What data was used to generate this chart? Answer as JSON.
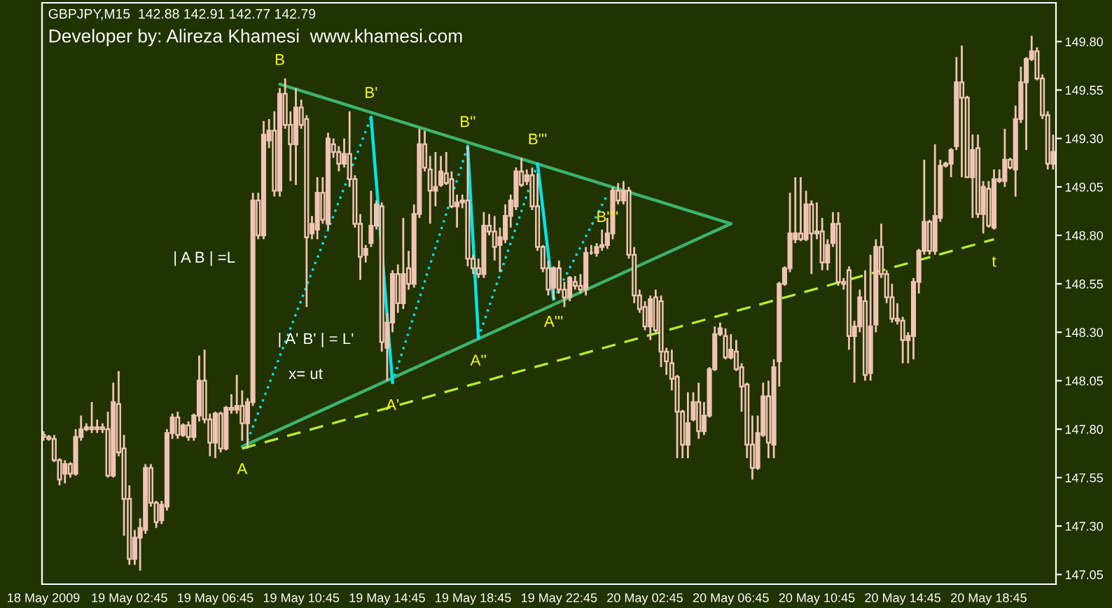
{
  "chart_data": {
    "type": "candlestick",
    "title": "GBPJPY,M15  142.88 142.91 142.77 142.79",
    "subtitle": "Developer by: Alireza Khamesi  www.khamesi.com",
    "color": "#f0c4b4",
    "x": [
      "2009-05-18T22:45",
      "2009-05-18T23:00",
      "2009-05-18T23:15",
      "2009-05-18T23:30",
      "2009-05-18T23:45",
      "2009-05-19T00:00",
      "2009-05-19T00:15",
      "2009-05-19T00:30",
      "2009-05-19T00:45",
      "2009-05-19T01:00",
      "2009-05-19T01:15",
      "2009-05-19T01:30",
      "2009-05-19T01:45",
      "2009-05-19T02:00",
      "2009-05-19T02:15",
      "2009-05-19T02:30",
      "2009-05-19T02:45",
      "2009-05-19T03:00",
      "2009-05-19T03:15",
      "2009-05-19T03:30",
      "2009-05-19T03:45",
      "2009-05-19T04:00",
      "2009-05-19T04:15",
      "2009-05-19T04:30",
      "2009-05-19T04:45",
      "2009-05-19T05:00",
      "2009-05-19T05:15",
      "2009-05-19T05:30",
      "2009-05-19T05:45",
      "2009-05-19T06:00",
      "2009-05-19T06:15",
      "2009-05-19T06:30",
      "2009-05-19T06:45",
      "2009-05-19T07:00",
      "2009-05-19T07:15",
      "2009-05-19T07:30",
      "2009-05-19T07:45",
      "2009-05-19T08:00",
      "2009-05-19T08:15",
      "2009-05-19T08:30",
      "2009-05-19T08:45",
      "2009-05-19T09:00",
      "2009-05-19T09:15",
      "2009-05-19T09:30",
      "2009-05-19T09:45",
      "2009-05-19T10:00",
      "2009-05-19T10:15",
      "2009-05-19T10:30",
      "2009-05-19T10:45",
      "2009-05-19T11:00",
      "2009-05-19T11:15",
      "2009-05-19T11:30",
      "2009-05-19T11:45",
      "2009-05-19T12:00",
      "2009-05-19T12:15",
      "2009-05-19T12:30",
      "2009-05-19T12:45",
      "2009-05-19T13:00",
      "2009-05-19T13:15",
      "2009-05-19T13:30",
      "2009-05-19T13:45",
      "2009-05-19T14:00",
      "2009-05-19T14:15",
      "2009-05-19T14:30",
      "2009-05-19T14:45",
      "2009-05-19T15:00",
      "2009-05-19T15:15",
      "2009-05-19T15:30",
      "2009-05-19T15:45",
      "2009-05-19T16:00",
      "2009-05-19T16:15",
      "2009-05-19T16:30",
      "2009-05-19T16:45",
      "2009-05-19T17:00",
      "2009-05-19T17:15",
      "2009-05-19T17:30",
      "2009-05-19T17:45",
      "2009-05-19T18:00",
      "2009-05-19T18:15",
      "2009-05-19T18:30",
      "2009-05-19T18:45",
      "2009-05-19T19:00",
      "2009-05-19T19:15",
      "2009-05-19T19:30",
      "2009-05-19T19:45",
      "2009-05-19T20:00",
      "2009-05-19T20:15",
      "2009-05-19T20:30",
      "2009-05-19T20:45",
      "2009-05-19T21:00",
      "2009-05-19T21:15",
      "2009-05-19T21:30",
      "2009-05-19T21:45",
      "2009-05-19T22:00",
      "2009-05-19T22:15",
      "2009-05-19T22:30",
      "2009-05-19T22:45",
      "2009-05-19T23:00",
      "2009-05-19T23:15",
      "2009-05-19T23:30",
      "2009-05-19T23:45",
      "2009-05-20T00:00",
      "2009-05-20T00:15",
      "2009-05-20T00:30",
      "2009-05-20T00:45",
      "2009-05-20T01:00",
      "2009-05-20T01:15",
      "2009-05-20T01:30",
      "2009-05-20T01:45",
      "2009-05-20T02:00",
      "2009-05-20T02:15",
      "2009-05-20T02:30",
      "2009-05-20T02:45",
      "2009-05-20T03:00",
      "2009-05-20T03:15",
      "2009-05-20T03:30",
      "2009-05-20T03:45",
      "2009-05-20T04:00",
      "2009-05-20T04:15",
      "2009-05-20T04:30",
      "2009-05-20T04:45",
      "2009-05-20T05:00",
      "2009-05-20T05:15",
      "2009-05-20T05:30",
      "2009-05-20T05:45",
      "2009-05-20T06:00",
      "2009-05-20T06:15",
      "2009-05-20T06:30",
      "2009-05-20T06:45",
      "2009-05-20T07:00",
      "2009-05-20T07:15",
      "2009-05-20T07:30",
      "2009-05-20T07:45",
      "2009-05-20T08:00",
      "2009-05-20T08:15",
      "2009-05-20T08:30",
      "2009-05-20T08:45",
      "2009-05-20T09:00",
      "2009-05-20T09:15",
      "2009-05-20T09:30",
      "2009-05-20T09:45",
      "2009-05-20T10:00",
      "2009-05-20T10:15",
      "2009-05-20T10:30",
      "2009-05-20T10:45",
      "2009-05-20T11:00",
      "2009-05-20T11:15",
      "2009-05-20T11:30",
      "2009-05-20T11:45",
      "2009-05-20T12:00",
      "2009-05-20T12:15",
      "2009-05-20T12:30",
      "2009-05-20T12:45",
      "2009-05-20T13:00",
      "2009-05-20T13:15",
      "2009-05-20T13:30",
      "2009-05-20T13:45",
      "2009-05-20T14:00",
      "2009-05-20T14:15",
      "2009-05-20T14:30",
      "2009-05-20T14:45",
      "2009-05-20T15:00",
      "2009-05-20T15:15",
      "2009-05-20T15:30",
      "2009-05-20T15:45",
      "2009-05-20T16:00",
      "2009-05-20T16:15",
      "2009-05-20T16:30",
      "2009-05-20T16:45",
      "2009-05-20T17:00",
      "2009-05-20T17:15",
      "2009-05-20T17:30",
      "2009-05-20T17:45",
      "2009-05-20T18:00",
      "2009-05-20T18:15",
      "2009-05-20T18:30",
      "2009-05-20T18:45",
      "2009-05-20T19:00",
      "2009-05-20T19:15",
      "2009-05-20T19:30",
      "2009-05-20T19:45",
      "2009-05-20T20:00",
      "2009-05-20T20:15",
      "2009-05-20T20:30",
      "2009-05-20T20:45",
      "2009-05-20T21:00",
      "2009-05-20T21:15",
      "2009-05-20T21:30",
      "2009-05-20T21:45"
    ],
    "ohlc": [
      [
        147.77,
        147.79,
        147.74,
        147.76
      ],
      [
        147.76,
        147.77,
        147.74,
        147.75
      ],
      [
        147.75,
        147.77,
        147.63,
        147.64
      ],
      [
        147.64,
        147.65,
        147.51,
        147.54
      ],
      [
        147.57,
        147.64,
        147.52,
        147.62
      ],
      [
        147.62,
        147.63,
        147.55,
        147.57
      ],
      [
        147.57,
        147.8,
        147.56,
        147.76
      ],
      [
        147.76,
        147.87,
        147.74,
        147.8
      ],
      [
        147.8,
        147.83,
        147.79,
        147.81
      ],
      [
        147.81,
        147.94,
        147.78,
        147.8
      ],
      [
        147.8,
        147.85,
        147.78,
        147.81
      ],
      [
        147.81,
        147.83,
        147.78,
        147.8
      ],
      [
        147.8,
        147.89,
        147.55,
        147.56
      ],
      [
        147.56,
        148.04,
        147.55,
        147.94
      ],
      [
        147.93,
        148.1,
        147.66,
        147.68
      ],
      [
        147.7,
        147.77,
        147.25,
        147.44
      ],
      [
        147.44,
        147.51,
        147.1,
        147.13
      ],
      [
        147.13,
        147.28,
        147.1,
        147.24
      ],
      [
        147.24,
        147.34,
        147.07,
        147.29
      ],
      [
        147.28,
        147.62,
        147.26,
        147.6
      ],
      [
        147.6,
        147.62,
        147.4,
        147.42
      ],
      [
        147.42,
        147.43,
        147.29,
        147.32
      ],
      [
        147.33,
        147.43,
        147.31,
        147.41
      ],
      [
        147.4,
        147.8,
        147.38,
        147.78
      ],
      [
        147.78,
        147.88,
        147.75,
        147.86
      ],
      [
        147.86,
        147.89,
        147.75,
        147.77
      ],
      [
        147.77,
        147.83,
        147.76,
        147.82
      ],
      [
        147.82,
        147.84,
        147.74,
        147.76
      ],
      [
        147.76,
        147.88,
        147.74,
        147.87
      ],
      [
        147.87,
        148.18,
        147.84,
        148.05
      ],
      [
        148.05,
        148.21,
        147.83,
        147.85
      ],
      [
        147.85,
        147.88,
        147.66,
        147.73
      ],
      [
        147.73,
        147.89,
        147.65,
        147.88
      ],
      [
        147.88,
        147.89,
        147.68,
        147.7
      ],
      [
        147.7,
        147.92,
        147.69,
        147.91
      ],
      [
        147.91,
        147.98,
        147.88,
        147.9
      ],
      [
        147.9,
        148.08,
        147.88,
        147.92
      ],
      [
        147.92,
        148.0,
        147.74,
        147.83
      ],
      [
        147.83,
        147.96,
        147.7,
        147.94
      ],
      [
        147.94,
        149.02,
        147.92,
        148.98
      ],
      [
        148.98,
        149.02,
        148.78,
        148.8
      ],
      [
        148.8,
        149.39,
        148.78,
        149.32
      ],
      [
        149.29,
        149.4,
        149.25,
        149.34
      ],
      [
        149.34,
        149.44,
        149.0,
        149.03
      ],
      [
        149.03,
        149.56,
        149.0,
        149.53
      ],
      [
        149.53,
        149.61,
        149.35,
        149.37
      ],
      [
        149.37,
        149.44,
        149.08,
        149.27
      ],
      [
        149.27,
        149.56,
        149.06,
        149.46
      ],
      [
        149.46,
        149.5,
        149.35,
        149.37
      ],
      [
        149.4,
        149.42,
        148.43,
        148.79
      ],
      [
        148.81,
        148.9,
        148.78,
        148.86
      ],
      [
        148.83,
        149.1,
        148.78,
        149.02
      ],
      [
        149.02,
        149.1,
        148.86,
        148.88
      ],
      [
        148.86,
        149.33,
        148.83,
        149.3
      ],
      [
        149.27,
        149.3,
        149.2,
        149.23
      ],
      [
        149.23,
        149.26,
        149.13,
        149.17
      ],
      [
        149.17,
        149.3,
        149.15,
        149.22
      ],
      [
        149.22,
        149.44,
        149.05,
        149.09
      ],
      [
        149.09,
        149.11,
        148.84,
        148.86
      ],
      [
        148.86,
        148.91,
        148.57,
        148.69
      ],
      [
        148.7,
        148.75,
        148.66,
        148.73
      ],
      [
        148.76,
        149.03,
        148.74,
        148.85
      ],
      [
        148.85,
        148.98,
        148.83,
        148.96
      ],
      [
        148.95,
        148.97,
        148.2,
        148.25
      ],
      [
        148.22,
        148.4,
        148.05,
        148.35
      ],
      [
        148.35,
        148.62,
        148.3,
        148.6
      ],
      [
        148.6,
        148.65,
        148.4,
        148.45
      ],
      [
        148.45,
        148.89,
        148.42,
        148.6
      ],
      [
        148.63,
        148.72,
        148.52,
        148.55
      ],
      [
        148.55,
        148.96,
        148.53,
        148.91
      ],
      [
        148.91,
        149.35,
        148.89,
        149.27
      ],
      [
        149.27,
        149.34,
        149.13,
        149.15
      ],
      [
        149.14,
        149.21,
        148.86,
        149.03
      ],
      [
        149.03,
        149.23,
        148.95,
        149.05
      ],
      [
        149.06,
        149.21,
        149.05,
        149.13
      ],
      [
        149.12,
        149.23,
        149.06,
        149.07
      ],
      [
        149.09,
        149.13,
        148.94,
        148.95
      ],
      [
        148.95,
        149.01,
        148.84,
        148.97
      ],
      [
        148.97,
        149.01,
        148.94,
        148.98
      ],
      [
        148.98,
        149.26,
        148.64,
        148.68
      ],
      [
        148.68,
        148.7,
        148.6,
        148.63
      ],
      [
        148.63,
        148.68,
        148.58,
        148.6
      ],
      [
        148.6,
        148.92,
        148.58,
        148.85
      ],
      [
        148.85,
        148.91,
        148.8,
        148.82
      ],
      [
        148.82,
        148.9,
        148.67,
        148.74
      ],
      [
        148.75,
        148.84,
        148.61,
        148.79
      ],
      [
        148.78,
        148.96,
        148.76,
        148.9
      ],
      [
        148.9,
        149.01,
        148.84,
        148.98
      ],
      [
        148.95,
        149.15,
        148.93,
        149.13
      ],
      [
        149.13,
        149.2,
        149.05,
        149.06
      ],
      [
        149.08,
        149.14,
        149.06,
        149.11
      ],
      [
        149.11,
        149.15,
        148.93,
        148.95
      ],
      [
        148.95,
        149.12,
        148.72,
        148.74
      ],
      [
        148.74,
        148.75,
        148.61,
        148.63
      ],
      [
        148.63,
        148.67,
        148.49,
        148.52
      ],
      [
        148.53,
        148.64,
        148.47,
        148.63
      ],
      [
        148.63,
        148.67,
        148.5,
        148.52
      ],
      [
        148.52,
        148.56,
        148.43,
        148.48
      ],
      [
        148.48,
        148.59,
        148.46,
        148.58
      ],
      [
        148.56,
        148.59,
        148.52,
        148.54
      ],
      [
        148.54,
        148.6,
        148.5,
        148.52
      ],
      [
        148.52,
        148.74,
        148.49,
        148.71
      ],
      [
        148.71,
        148.75,
        148.7,
        148.71
      ],
      [
        148.71,
        148.76,
        148.69,
        148.74
      ],
      [
        148.74,
        148.83,
        148.72,
        148.75
      ],
      [
        148.75,
        148.89,
        148.73,
        148.81
      ],
      [
        148.81,
        149.05,
        148.78,
        149.03
      ],
      [
        149.03,
        149.07,
        148.96,
        148.98
      ],
      [
        148.98,
        149.08,
        148.96,
        149.03
      ],
      [
        149.03,
        149.05,
        148.68,
        148.7
      ],
      [
        148.7,
        148.74,
        148.45,
        148.49
      ],
      [
        148.49,
        148.52,
        148.4,
        148.42
      ],
      [
        148.43,
        148.46,
        148.31,
        148.33
      ],
      [
        148.33,
        148.49,
        148.26,
        148.47
      ],
      [
        148.48,
        148.52,
        148.3,
        148.31
      ],
      [
        148.46,
        148.49,
        148.12,
        148.2
      ],
      [
        148.2,
        148.22,
        148.08,
        148.15
      ],
      [
        148.14,
        148.21,
        148.0,
        148.06
      ],
      [
        148.07,
        148.08,
        147.65,
        147.89
      ],
      [
        147.89,
        147.9,
        147.65,
        147.72
      ],
      [
        147.72,
        147.99,
        147.65,
        147.83
      ],
      [
        147.85,
        147.99,
        147.84,
        147.94
      ],
      [
        147.94,
        148.04,
        147.75,
        147.79
      ],
      [
        147.79,
        147.94,
        147.77,
        147.87
      ],
      [
        147.87,
        148.12,
        147.86,
        148.11
      ],
      [
        148.11,
        148.33,
        148.1,
        148.29
      ],
      [
        148.29,
        148.35,
        148.28,
        148.32
      ],
      [
        148.28,
        148.32,
        148.16,
        148.17
      ],
      [
        148.17,
        148.29,
        148.16,
        148.21
      ],
      [
        148.2,
        148.26,
        148.1,
        148.11
      ],
      [
        148.12,
        148.14,
        147.89,
        148.02
      ],
      [
        148.03,
        148.04,
        147.65,
        147.72
      ],
      [
        147.72,
        147.87,
        147.54,
        147.6
      ],
      [
        147.6,
        147.87,
        147.59,
        147.78
      ],
      [
        147.77,
        148.04,
        147.76,
        147.97
      ],
      [
        147.97,
        148.05,
        147.65,
        147.73
      ],
      [
        147.72,
        148.16,
        147.65,
        148.12
      ],
      [
        148.15,
        148.56,
        148.02,
        148.55
      ],
      [
        148.55,
        148.64,
        148.54,
        148.63
      ],
      [
        148.63,
        149.02,
        148.61,
        148.81
      ],
      [
        148.78,
        149.1,
        148.76,
        148.81
      ],
      [
        148.81,
        149.1,
        148.77,
        148.78
      ],
      [
        148.78,
        149.03,
        148.77,
        148.96
      ],
      [
        148.96,
        148.98,
        148.6,
        148.81
      ],
      [
        148.81,
        148.97,
        148.78,
        148.82
      ],
      [
        148.82,
        148.89,
        148.62,
        148.66
      ],
      [
        148.66,
        148.78,
        148.62,
        148.75
      ],
      [
        148.76,
        148.92,
        148.74,
        148.86
      ],
      [
        148.86,
        148.92,
        148.54,
        148.56
      ],
      [
        148.56,
        148.58,
        148.52,
        148.55
      ],
      [
        148.62,
        148.64,
        148.21,
        148.28
      ],
      [
        148.28,
        148.36,
        148.04,
        148.33
      ],
      [
        148.33,
        148.52,
        148.3,
        148.48
      ],
      [
        148.46,
        148.62,
        148.05,
        148.08
      ],
      [
        148.09,
        148.7,
        148.05,
        148.33
      ],
      [
        148.34,
        148.78,
        148.3,
        148.74
      ],
      [
        148.74,
        148.86,
        148.58,
        148.6
      ],
      [
        148.6,
        148.62,
        148.45,
        148.48
      ],
      [
        148.48,
        148.55,
        148.35,
        148.37
      ],
      [
        148.37,
        148.45,
        148.34,
        148.36
      ],
      [
        148.36,
        148.38,
        148.14,
        148.26
      ],
      [
        148.26,
        148.3,
        148.14,
        148.28
      ],
      [
        148.28,
        148.58,
        148.16,
        148.56
      ],
      [
        148.56,
        148.73,
        148.5,
        148.72
      ],
      [
        148.72,
        149.19,
        148.7,
        148.87
      ],
      [
        148.87,
        148.88,
        148.7,
        148.72
      ],
      [
        148.72,
        149.27,
        148.7,
        148.9
      ],
      [
        148.89,
        149.19,
        148.87,
        149.16
      ],
      [
        149.16,
        149.18,
        149.15,
        149.17
      ],
      [
        149.17,
        149.25,
        149.1,
        149.24
      ],
      [
        149.26,
        149.72,
        149.24,
        149.59
      ],
      [
        149.59,
        149.78,
        149.1,
        149.51
      ],
      [
        149.51,
        149.52,
        149.1,
        149.1
      ],
      [
        149.1,
        149.32,
        148.89,
        149.24
      ],
      [
        149.25,
        149.32,
        148.89,
        148.91
      ],
      [
        148.91,
        149.08,
        148.81,
        149.05
      ],
      [
        149.04,
        149.08,
        148.84,
        148.85
      ],
      [
        148.84,
        149.14,
        148.83,
        149.09
      ],
      [
        149.09,
        149.14,
        149.07,
        149.08
      ],
      [
        149.08,
        149.35,
        149.05,
        149.19
      ],
      [
        149.19,
        149.2,
        149.14,
        149.15
      ],
      [
        149.14,
        149.47,
        149.0,
        149.4
      ],
      [
        149.4,
        149.67,
        149.38,
        149.59
      ],
      [
        149.59,
        149.72,
        149.24,
        149.71
      ],
      [
        149.71,
        149.83,
        149.7,
        149.75
      ],
      [
        149.75,
        149.77,
        149.6,
        149.61
      ],
      [
        149.61,
        149.63,
        149.4,
        149.42
      ],
      [
        149.42,
        149.44,
        149.14,
        149.17
      ],
      [
        149.17,
        149.32,
        149.14,
        149.23
      ]
    ],
    "series": [
      {
        "type": "line",
        "color": "#3cb371",
        "line_style": "solid",
        "x": [
          "2009-05-19T09:45",
          "2009-05-20T06:45"
        ],
        "values": [
          149.58,
          148.86
        ]
      },
      {
        "type": "line",
        "color": "#3cb371",
        "line_style": "solid",
        "x": [
          "2009-05-19T08:00",
          "2009-05-20T06:45"
        ],
        "values": [
          147.71,
          148.86
        ]
      },
      {
        "type": "line",
        "color": "#b4f028",
        "line_style": "dashed",
        "x": [
          "2009-05-19T08:00",
          "2009-05-20T19:00"
        ],
        "values": [
          147.7,
          148.78
        ]
      },
      {
        "type": "line",
        "color": "#00e5ee",
        "line_style": "dotted",
        "x": [
          "2009-05-19T08:15",
          "2009-05-19T14:00"
        ],
        "values": [
          147.74,
          149.41
        ]
      },
      {
        "type": "line",
        "color": "#00e5ee",
        "line_style": "dotted",
        "x": [
          "2009-05-19T15:00",
          "2009-05-19T18:30"
        ],
        "values": [
          148.04,
          149.26
        ]
      },
      {
        "type": "line",
        "color": "#00e5ee",
        "line_style": "dotted",
        "x": [
          "2009-05-19T19:00",
          "2009-05-19T21:45"
        ],
        "values": [
          148.27,
          149.17
        ]
      },
      {
        "type": "line",
        "color": "#00e5ee",
        "line_style": "dotted",
        "x": [
          "2009-05-19T22:30",
          "2009-05-20T01:00"
        ],
        "values": [
          148.47,
          149.01
        ]
      },
      {
        "type": "line",
        "color": "#00e5ee",
        "line_style": "solid",
        "x": [
          "2009-05-19T14:00",
          "2009-05-19T15:00"
        ],
        "values": [
          149.41,
          148.04
        ]
      },
      {
        "type": "line",
        "color": "#00e5ee",
        "line_style": "solid",
        "x": [
          "2009-05-19T18:30",
          "2009-05-19T19:00"
        ],
        "values": [
          149.26,
          148.27
        ]
      },
      {
        "type": "line",
        "color": "#00e5ee",
        "line_style": "solid",
        "x": [
          "2009-05-19T21:45",
          "2009-05-19T22:30"
        ],
        "values": [
          149.17,
          148.47
        ]
      }
    ],
    "annotations": [
      {
        "text": "B",
        "x": "2009-05-19T09:45",
        "y": 149.58
      },
      {
        "text": "B'",
        "x": "2009-05-19T14:00",
        "y": 149.41
      },
      {
        "text": "B''",
        "x": "2009-05-19T18:30",
        "y": 149.26
      },
      {
        "text": "B'''",
        "x": "2009-05-19T21:45",
        "y": 149.17
      },
      {
        "text": "B''''",
        "x": "2009-05-20T01:00",
        "y": 149.01
      },
      {
        "text": "A",
        "x": "2009-05-19T08:00",
        "y": 147.71
      },
      {
        "text": "A'",
        "x": "2009-05-19T15:00",
        "y": 148.04
      },
      {
        "text": "A''",
        "x": "2009-05-19T19:00",
        "y": 148.27
      },
      {
        "text": "A'''",
        "x": "2009-05-19T22:30",
        "y": 148.47
      },
      {
        "text": "t",
        "x": "2009-05-20T19:00",
        "y": 148.78
      },
      "| A B | =L",
      "| A' B' | = L'",
      "x= ut"
    ],
    "xlim": [
      "2009-05-18T22:41",
      "2009-05-20T21:53"
    ],
    "xticks": [
      {
        "value": "2009-05-18T22:45",
        "label": "18 May 2009"
      },
      {
        "value": "2009-05-19T02:45",
        "label": "19 May 02:45"
      },
      {
        "value": "2009-05-19T06:45",
        "label": "19 May 06:45"
      },
      {
        "value": "2009-05-19T10:45",
        "label": "19 May 10:45"
      },
      {
        "value": "2009-05-19T14:45",
        "label": "19 May 14:45"
      },
      {
        "value": "2009-05-19T18:45",
        "label": "19 May 18:45"
      },
      {
        "value": "2009-05-19T22:45",
        "label": "19 May 22:45"
      },
      {
        "value": "2009-05-20T02:45",
        "label": "20 May 02:45"
      },
      {
        "value": "2009-05-20T06:45",
        "label": "20 May 06:45"
      },
      {
        "value": "2009-05-20T10:45",
        "label": "20 May 10:45"
      },
      {
        "value": "2009-05-20T14:45",
        "label": "20 May 14:45"
      },
      {
        "value": "2009-05-20T18:45",
        "label": "20 May 18:45"
      }
    ],
    "ylim": [
      147.0,
      150.0
    ],
    "yticks": [
      147.05,
      {
        "value": 147.3,
        "label": "147.30"
      },
      147.55,
      {
        "value": 147.8,
        "label": "147.80"
      },
      148.05,
      {
        "value": 148.3,
        "label": "148.30"
      },
      148.55,
      {
        "value": 148.8,
        "label": "148.80"
      },
      149.05,
      {
        "value": 149.3,
        "label": "149.30"
      },
      149.55,
      {
        "value": 149.8,
        "label": "149.80"
      }
    ],
    "grid": false
  }
}
